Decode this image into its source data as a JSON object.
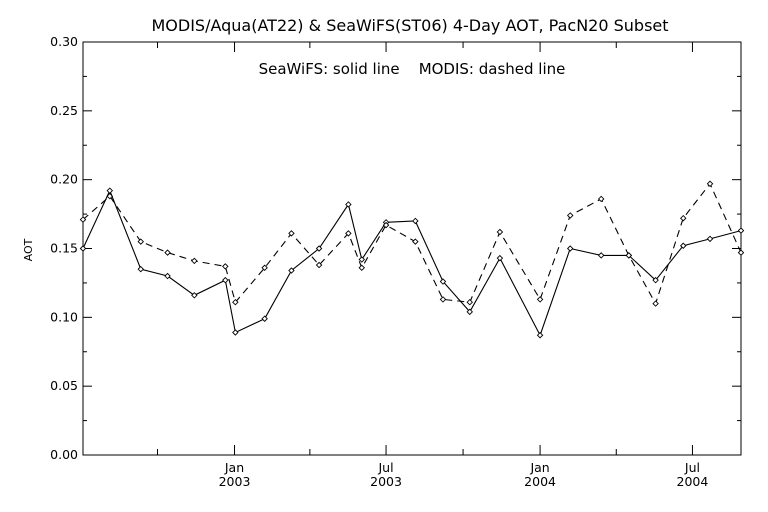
{
  "chart_data": {
    "type": "line",
    "title": "MODIS/Aqua(AT22) & SeaWiFS(ST06) 4-Day AOT, PacN20 Subset",
    "annotation": "SeaWiFS: solid line    MODIS: dashed line",
    "ylabel": "AOT",
    "xlabel": "",
    "ylim": [
      0.0,
      0.3
    ],
    "xlim": [
      "2002-07-04",
      "2004-08-28"
    ],
    "grid": false,
    "y_ticks": [
      "0.00",
      "0.05",
      "0.10",
      "0.15",
      "0.20",
      "0.25",
      "0.30"
    ],
    "x_ticks": [
      {
        "date": "2003-01-01",
        "month": "Jan",
        "year": "2003"
      },
      {
        "date": "2003-07-01",
        "month": "Jul",
        "year": "2003"
      },
      {
        "date": "2004-01-01",
        "month": "Jan",
        "year": "2004"
      },
      {
        "date": "2004-07-01",
        "month": "Jul",
        "year": "2004"
      }
    ],
    "series": [
      {
        "name": "SeaWiFS",
        "style": "solid",
        "color": "#000000",
        "x": [
          "2002-07-04",
          "2002-08-05",
          "2002-09-11",
          "2002-10-13",
          "2002-11-14",
          "2002-12-21",
          "2003-01-02",
          "2003-02-06",
          "2003-03-10",
          "2003-04-12",
          "2003-05-17",
          "2003-06-02",
          "2003-07-01",
          "2003-08-05",
          "2003-09-07",
          "2003-10-09",
          "2003-11-14",
          "2004-01-01",
          "2004-02-06",
          "2004-03-14",
          "2004-04-16",
          "2004-05-18",
          "2004-06-20",
          "2004-07-22",
          "2004-08-28"
        ],
        "values": [
          0.15,
          0.192,
          0.135,
          0.13,
          0.116,
          0.127,
          0.089,
          0.099,
          0.134,
          0.15,
          0.182,
          0.142,
          0.169,
          0.17,
          0.126,
          0.104,
          0.143,
          0.087,
          0.15,
          0.145,
          0.145,
          0.127,
          0.152,
          0.157,
          0.163
        ]
      },
      {
        "name": "MODIS",
        "style": "dashed",
        "color": "#000000",
        "x": [
          "2002-07-04",
          "2002-08-05",
          "2002-09-11",
          "2002-10-13",
          "2002-11-14",
          "2002-12-21",
          "2003-01-02",
          "2003-02-06",
          "2003-03-10",
          "2003-04-12",
          "2003-05-17",
          "2003-06-02",
          "2003-07-01",
          "2003-08-05",
          "2003-09-07",
          "2003-10-09",
          "2003-11-14",
          "2004-01-01",
          "2004-02-06",
          "2004-03-14",
          "2004-04-16",
          "2004-05-18",
          "2004-06-20",
          "2004-07-22",
          "2004-08-28"
        ],
        "values": [
          0.171,
          0.188,
          0.155,
          0.147,
          0.141,
          0.137,
          0.111,
          0.136,
          0.161,
          0.138,
          0.161,
          0.136,
          0.167,
          0.155,
          0.113,
          0.111,
          0.162,
          0.113,
          0.174,
          0.186,
          0.145,
          0.11,
          0.172,
          0.197,
          0.147
        ]
      }
    ]
  }
}
